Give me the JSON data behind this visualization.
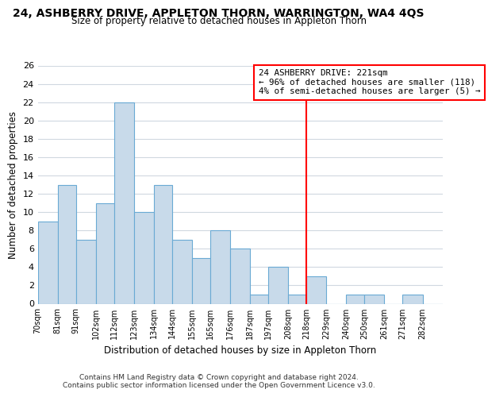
{
  "title": "24, ASHBERRY DRIVE, APPLETON THORN, WARRINGTON, WA4 4QS",
  "subtitle": "Size of property relative to detached houses in Appleton Thorn",
  "xlabel": "Distribution of detached houses by size in Appleton Thorn",
  "ylabel": "Number of detached properties",
  "bin_labels": [
    "70sqm",
    "81sqm",
    "91sqm",
    "102sqm",
    "112sqm",
    "123sqm",
    "134sqm",
    "144sqm",
    "155sqm",
    "165sqm",
    "176sqm",
    "187sqm",
    "197sqm",
    "208sqm",
    "218sqm",
    "229sqm",
    "240sqm",
    "250sqm",
    "261sqm",
    "271sqm",
    "282sqm"
  ],
  "bin_edges": [
    70,
    81,
    91,
    102,
    112,
    123,
    134,
    144,
    155,
    165,
    176,
    187,
    197,
    208,
    218,
    229,
    240,
    250,
    261,
    271,
    282
  ],
  "counts": [
    9,
    13,
    7,
    11,
    22,
    10,
    13,
    7,
    5,
    8,
    6,
    1,
    4,
    1,
    3,
    0,
    1,
    1,
    0,
    1,
    0
  ],
  "bar_color": "#c8daea",
  "bar_edge_color": "#6aaad4",
  "ylim": [
    0,
    26
  ],
  "yticks": [
    0,
    2,
    4,
    6,
    8,
    10,
    12,
    14,
    16,
    18,
    20,
    22,
    24,
    26
  ],
  "vline_x": 218,
  "vline_color": "red",
  "annotation_title": "24 ASHBERRY DRIVE: 221sqm",
  "annotation_line1": "← 96% of detached houses are smaller (118)",
  "annotation_line2": "4% of semi-detached houses are larger (5) →",
  "annotation_box_color": "red",
  "footer1": "Contains HM Land Registry data © Crown copyright and database right 2024.",
  "footer2": "Contains public sector information licensed under the Open Government Licence v3.0.",
  "background_color": "#ffffff",
  "plot_bg_color": "#ffffff",
  "grid_color": "#d0d8e0"
}
